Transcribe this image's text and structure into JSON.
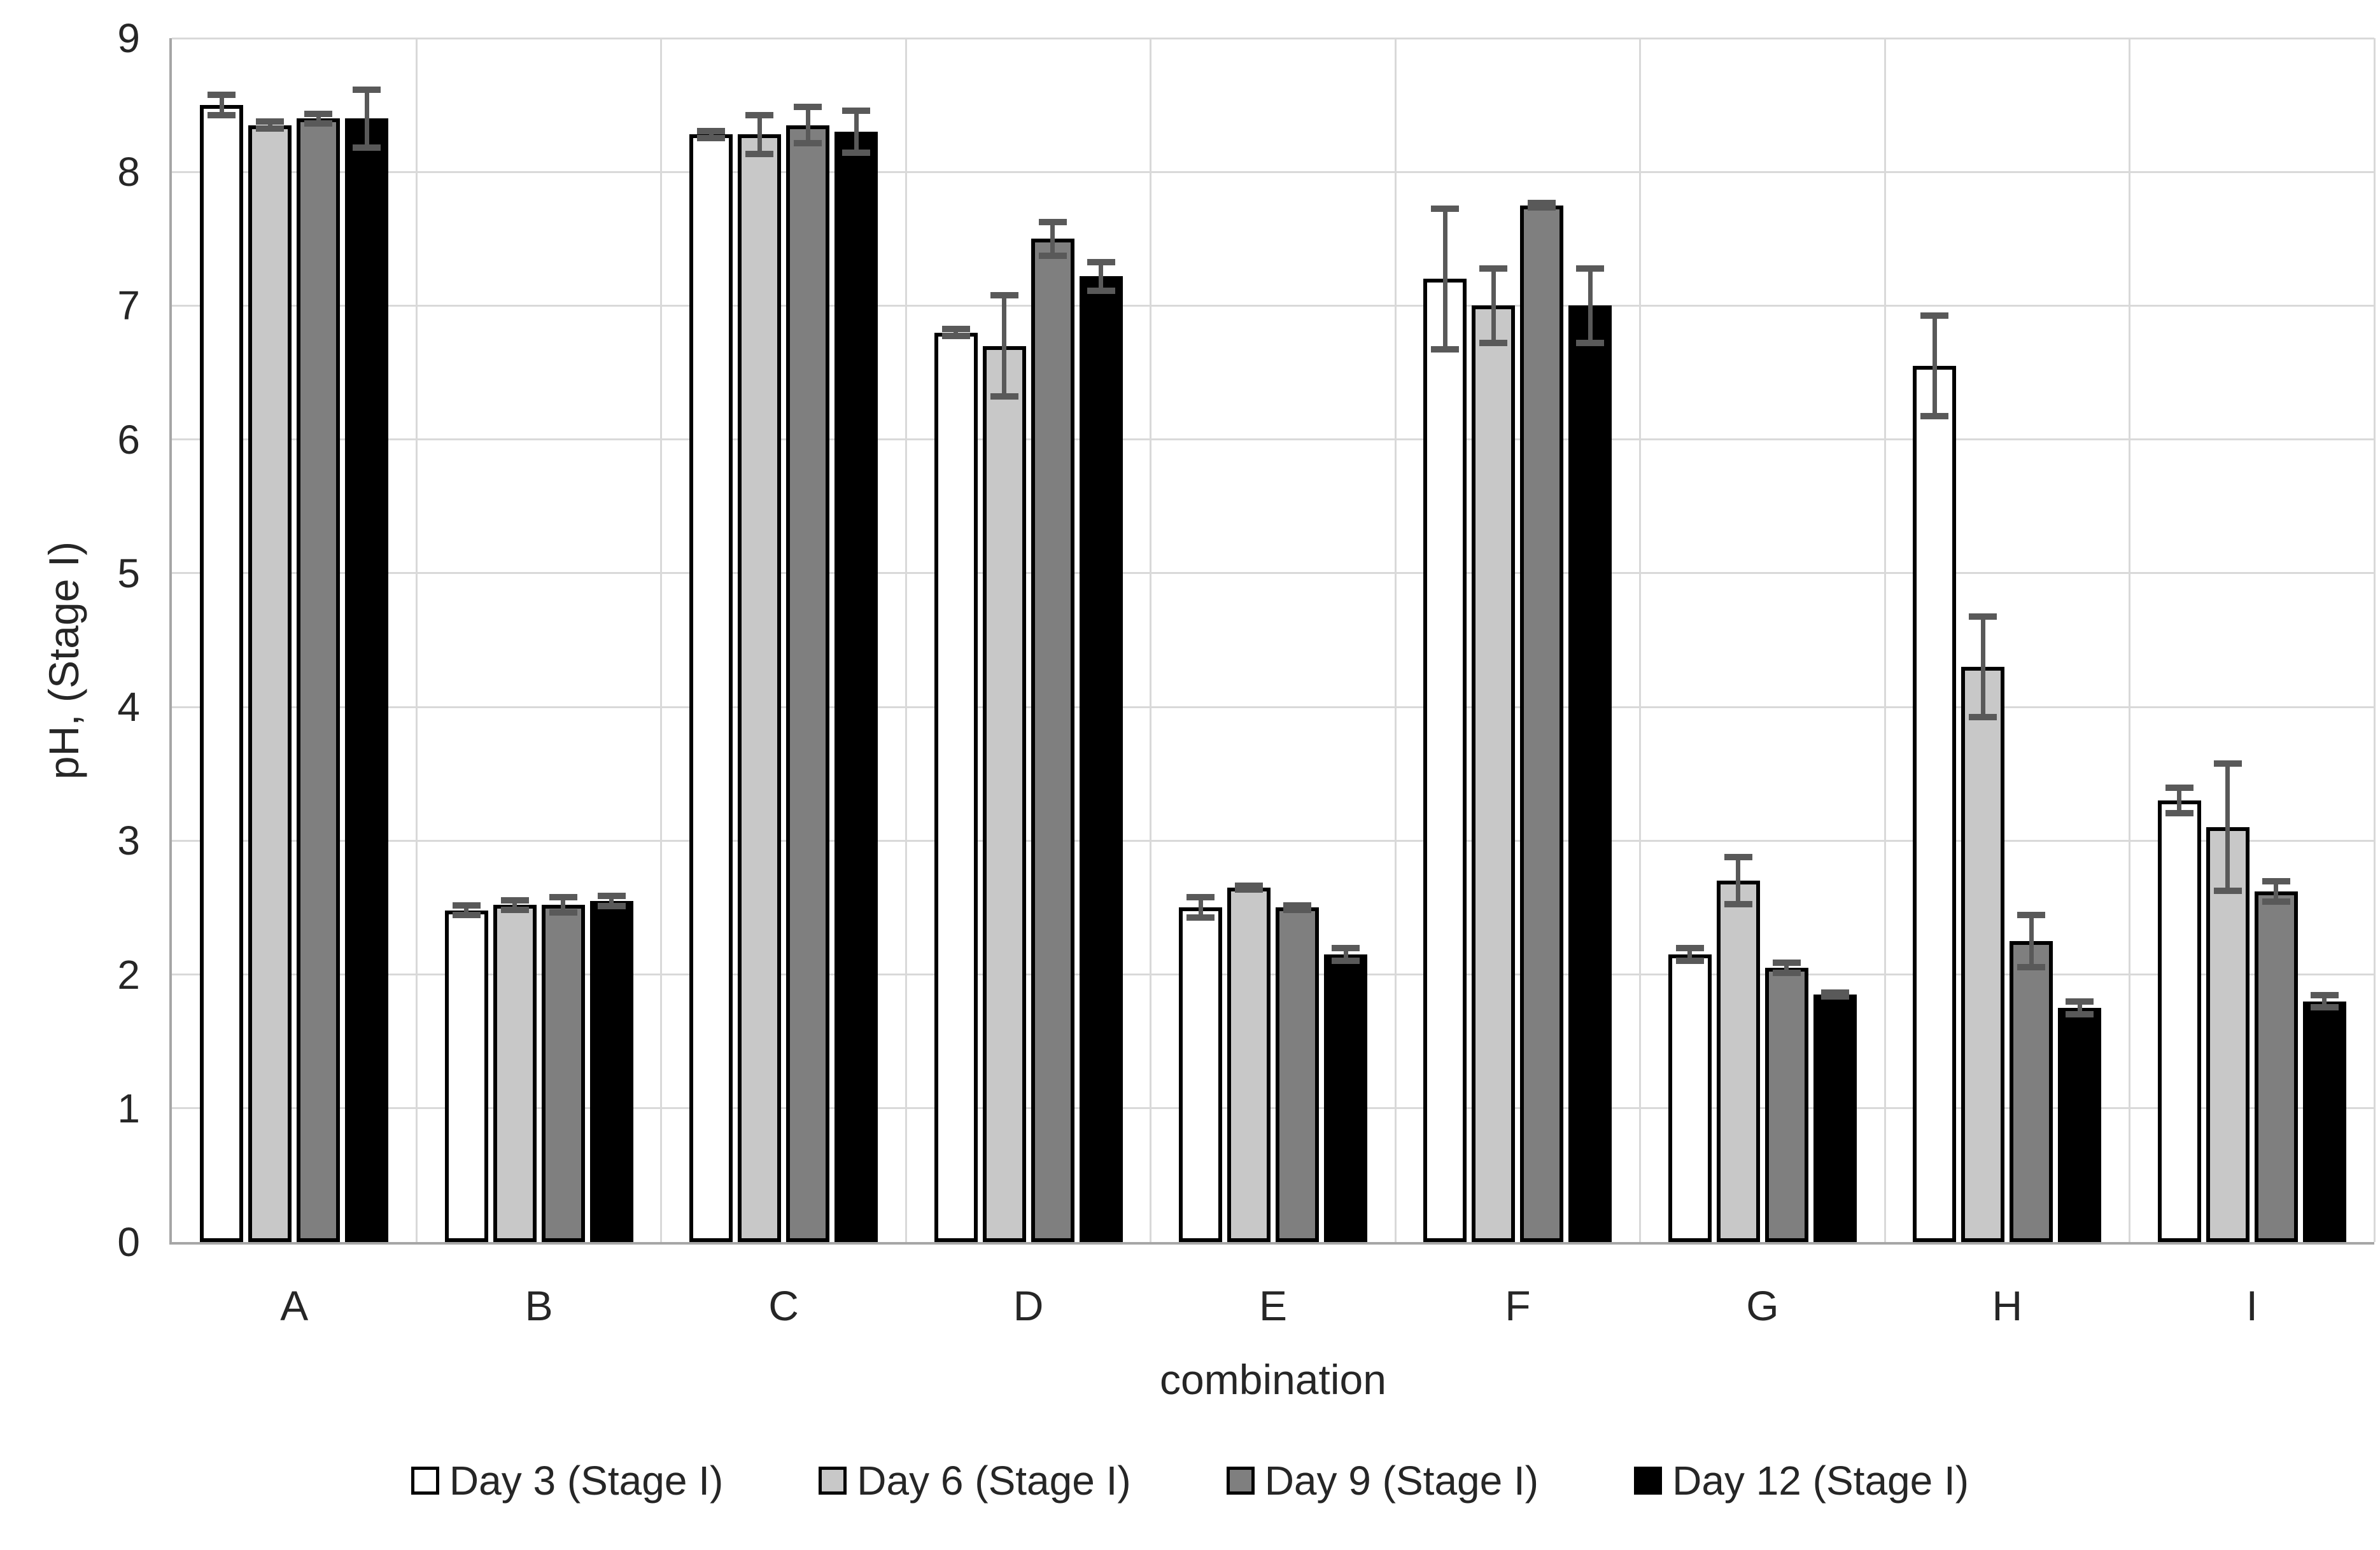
{
  "chart_data": {
    "type": "bar",
    "title": "",
    "xlabel": "combination",
    "ylabel": "pH, (Stage I)",
    "categories": [
      "A",
      "B",
      "C",
      "D",
      "E",
      "F",
      "G",
      "H",
      "I"
    ],
    "series": [
      {
        "name": "Day 3 (Stage I)",
        "fill": "#ffffff",
        "values": [
          8.5,
          2.48,
          8.28,
          6.8,
          2.5,
          7.2,
          2.15,
          6.55,
          3.3
        ],
        "errors": [
          0.1,
          0.06,
          0.05,
          0.05,
          0.1,
          0.55,
          0.07,
          0.4,
          0.12
        ]
      },
      {
        "name": "Day 6 (Stage I)",
        "fill": "#c8c8c8",
        "values": [
          8.35,
          2.52,
          8.28,
          6.7,
          2.65,
          7.0,
          2.7,
          4.3,
          3.1
        ],
        "errors": [
          0.05,
          0.06,
          0.17,
          0.4,
          0.04,
          0.3,
          0.2,
          0.4,
          0.5
        ]
      },
      {
        "name": "Day 9 (Stage I)",
        "fill": "#7f7f7f",
        "values": [
          8.4,
          2.52,
          8.35,
          7.5,
          2.5,
          7.75,
          2.05,
          2.25,
          2.62
        ],
        "errors": [
          0.06,
          0.08,
          0.16,
          0.15,
          0.04,
          0.04,
          0.06,
          0.22,
          0.1
        ]
      },
      {
        "name": "Day 12 (Stage I)",
        "fill": "#000000",
        "values": [
          8.4,
          2.55,
          8.3,
          7.22,
          2.15,
          7.0,
          1.85,
          1.75,
          1.8
        ],
        "errors": [
          0.24,
          0.06,
          0.18,
          0.13,
          0.07,
          0.3,
          0.04,
          0.07,
          0.07
        ]
      }
    ],
    "ylim": [
      0,
      9
    ],
    "ytick_step": 1,
    "grid": true,
    "vertical_category_separators": true,
    "error_bars": true,
    "legend_position": "bottom"
  },
  "style": {
    "background": "#ffffff",
    "bar_border_color": "#000000",
    "grid_color": "#d9d9d9",
    "axis_line_color": "#a6a6a6",
    "error_bar_color": "#595959",
    "text_color": "#262626"
  }
}
